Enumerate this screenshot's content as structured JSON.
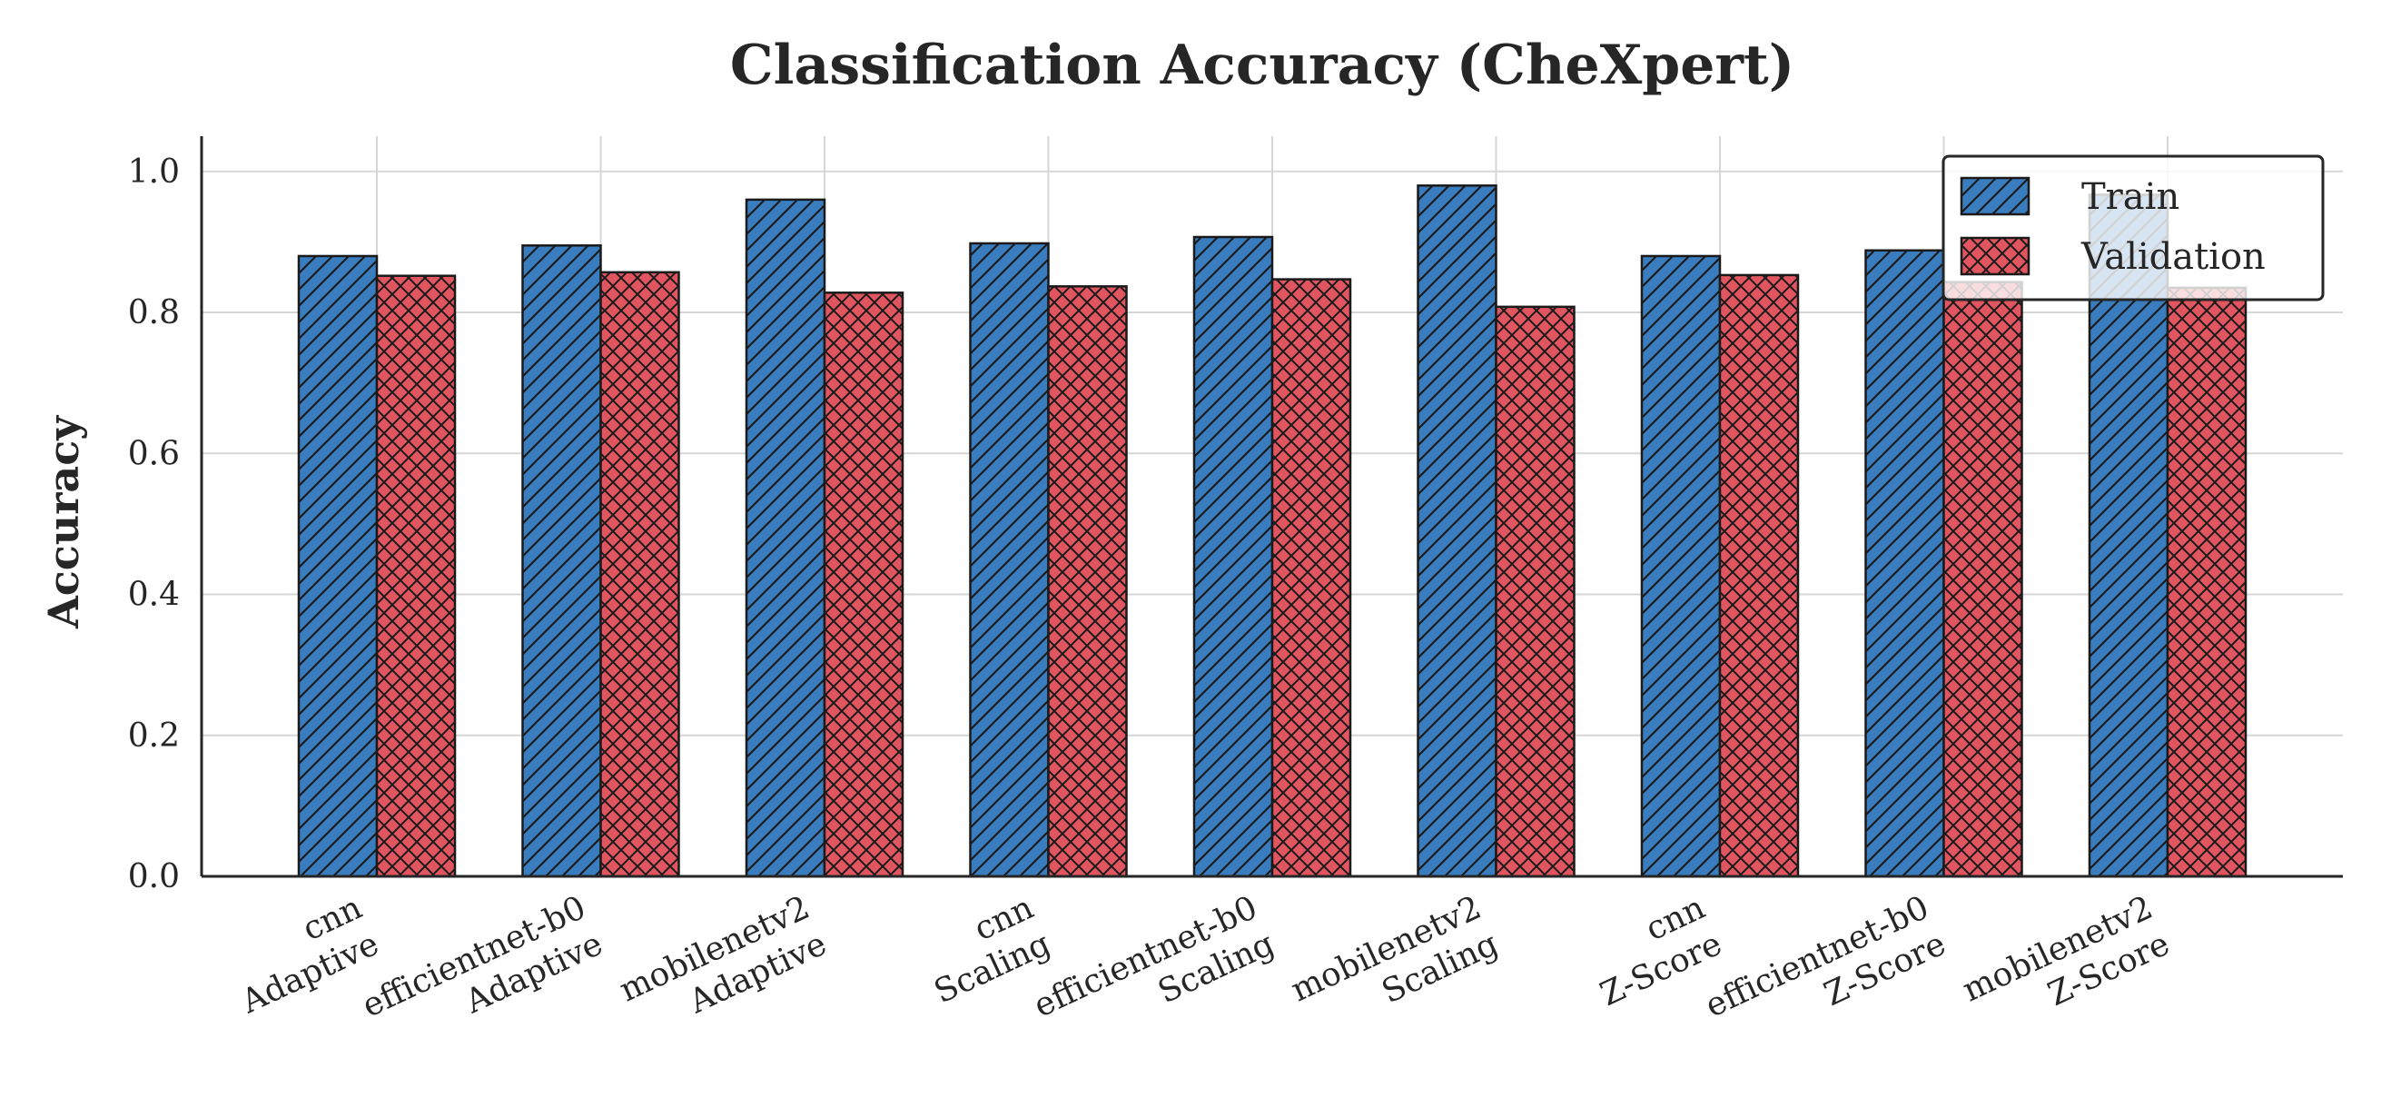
{
  "chart_data": {
    "type": "bar",
    "title": "Classification Accuracy (CheXpert)",
    "xlabel": "",
    "ylabel": "Accuracy",
    "ylim": [
      0,
      1.05
    ],
    "yticks": [
      "0.0",
      "0.2",
      "0.4",
      "0.6",
      "0.8",
      "1.0"
    ],
    "grid": true,
    "legend_position": "top-right",
    "categories": [
      [
        "cnn",
        "Adaptive"
      ],
      [
        "efficientnet-b0",
        "Adaptive"
      ],
      [
        "mobilenetv2",
        "Adaptive"
      ],
      [
        "cnn",
        "Scaling"
      ],
      [
        "efficientnet-b0",
        "Scaling"
      ],
      [
        "mobilenetv2",
        "Scaling"
      ],
      [
        "cnn",
        "Z-Score"
      ],
      [
        "efficientnet-b0",
        "Z-Score"
      ],
      [
        "mobilenetv2",
        "Z-Score"
      ]
    ],
    "series": [
      {
        "name": "Train",
        "color": "#3a7dbf",
        "pattern": "diagonal-hatch",
        "values": [
          0.88,
          0.895,
          0.96,
          0.898,
          0.907,
          0.98,
          0.88,
          0.888,
          0.967
        ]
      },
      {
        "name": "Validation",
        "color": "#e05560",
        "pattern": "cross-hatch",
        "values": [
          0.852,
          0.857,
          0.828,
          0.837,
          0.847,
          0.808,
          0.853,
          0.843,
          0.835
        ]
      }
    ]
  }
}
